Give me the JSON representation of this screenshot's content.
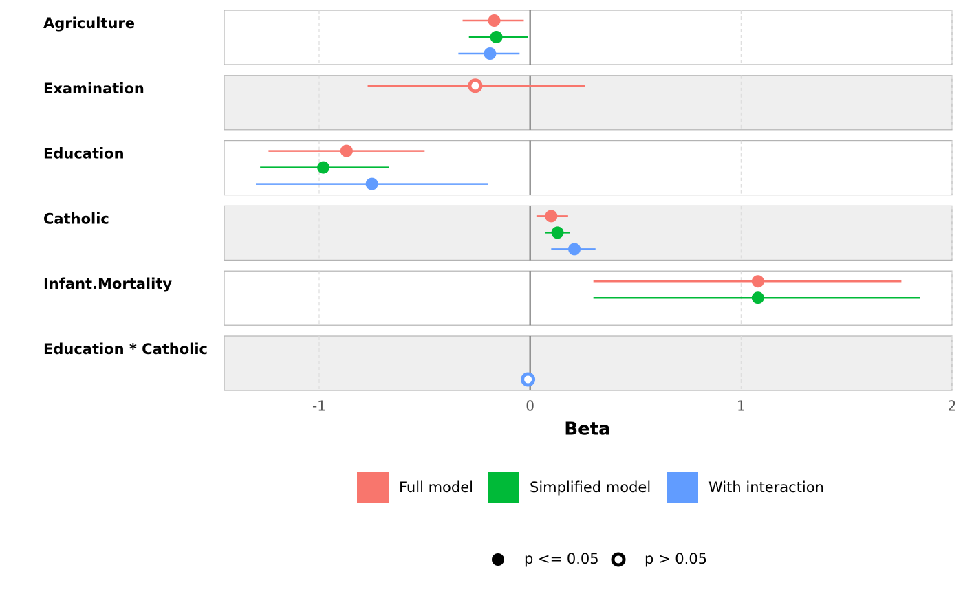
{
  "chart_data": {
    "type": "coefficient-plot",
    "categories": [
      "Agriculture",
      "Examination",
      "Education",
      "Catholic",
      "Infant.Mortality",
      "Education * Catholic"
    ],
    "series": [
      {
        "name": "Full model",
        "color": "#f8766d",
        "values": [
          -0.17,
          -0.26,
          -0.87,
          0.1,
          1.08,
          null
        ],
        "lower": [
          -0.32,
          -0.77,
          -1.24,
          0.03,
          0.3,
          null
        ],
        "upper": [
          -0.03,
          0.26,
          -0.5,
          0.18,
          1.76,
          null
        ],
        "significant": [
          true,
          false,
          true,
          true,
          true,
          null
        ]
      },
      {
        "name": "Simplified model",
        "color": "#00ba38",
        "values": [
          -0.16,
          null,
          -0.98,
          0.13,
          1.08,
          null
        ],
        "lower": [
          -0.29,
          null,
          -1.28,
          0.07,
          0.3,
          null
        ],
        "upper": [
          -0.01,
          null,
          -0.67,
          0.19,
          1.85,
          null
        ],
        "significant": [
          true,
          null,
          true,
          true,
          true,
          null
        ]
      },
      {
        "name": "With interaction",
        "color": "#619cff",
        "values": [
          -0.19,
          null,
          -0.75,
          0.21,
          null,
          -0.01
        ],
        "lower": [
          -0.34,
          null,
          -1.3,
          0.1,
          null,
          -0.02
        ],
        "upper": [
          -0.05,
          null,
          -0.2,
          0.31,
          null,
          0.0
        ],
        "significant": [
          true,
          null,
          true,
          true,
          null,
          false
        ]
      }
    ],
    "xlabel": "Beta",
    "xlim": [
      -1.45,
      2.0
    ],
    "xticks": [
      -1,
      0,
      1,
      2
    ],
    "reference_line": 0,
    "grid": true,
    "shape_legend": [
      "p <= 0.05",
      "p > 0.05"
    ]
  }
}
